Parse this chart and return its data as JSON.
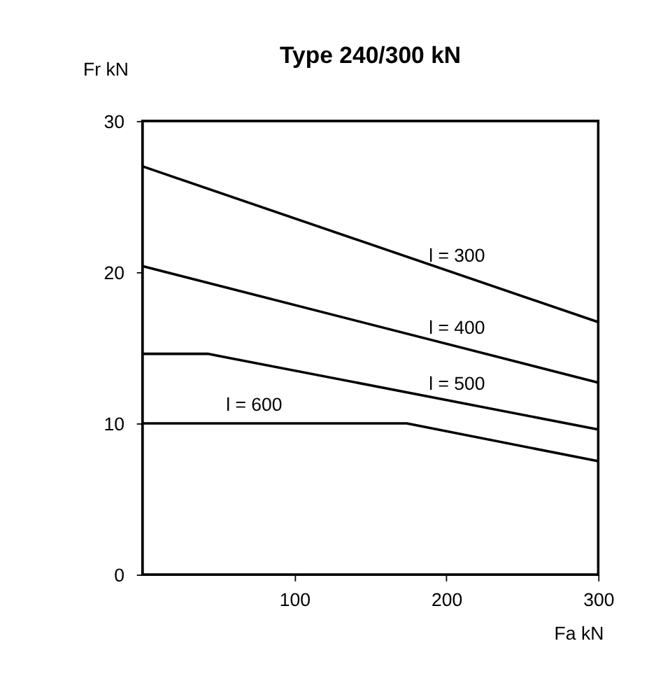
{
  "chart_data": {
    "type": "line",
    "title": "Type 240/300 kN",
    "xlabel": "Fa kN",
    "ylabel": "Fr kN",
    "xlim": [
      0,
      300
    ],
    "ylim": [
      0,
      30
    ],
    "xticks": [
      100,
      200,
      300
    ],
    "yticks": [
      0,
      10,
      20,
      30
    ],
    "grid": false,
    "marker": "none",
    "line_style": "solid",
    "series": [
      {
        "name": "l = 300",
        "color": "#000000",
        "x": [
          0,
          300
        ],
        "values": [
          27.0,
          16.7
        ]
      },
      {
        "name": "l = 400",
        "color": "#000000",
        "x": [
          0,
          300
        ],
        "values": [
          20.4,
          12.7
        ]
      },
      {
        "name": "l = 500",
        "color": "#000000",
        "x": [
          0,
          43,
          300
        ],
        "values": [
          14.6,
          14.6,
          9.6
        ]
      },
      {
        "name": "l = 600",
        "color": "#000000",
        "x": [
          0,
          174,
          300
        ],
        "values": [
          10,
          10,
          7.5
        ]
      }
    ]
  }
}
